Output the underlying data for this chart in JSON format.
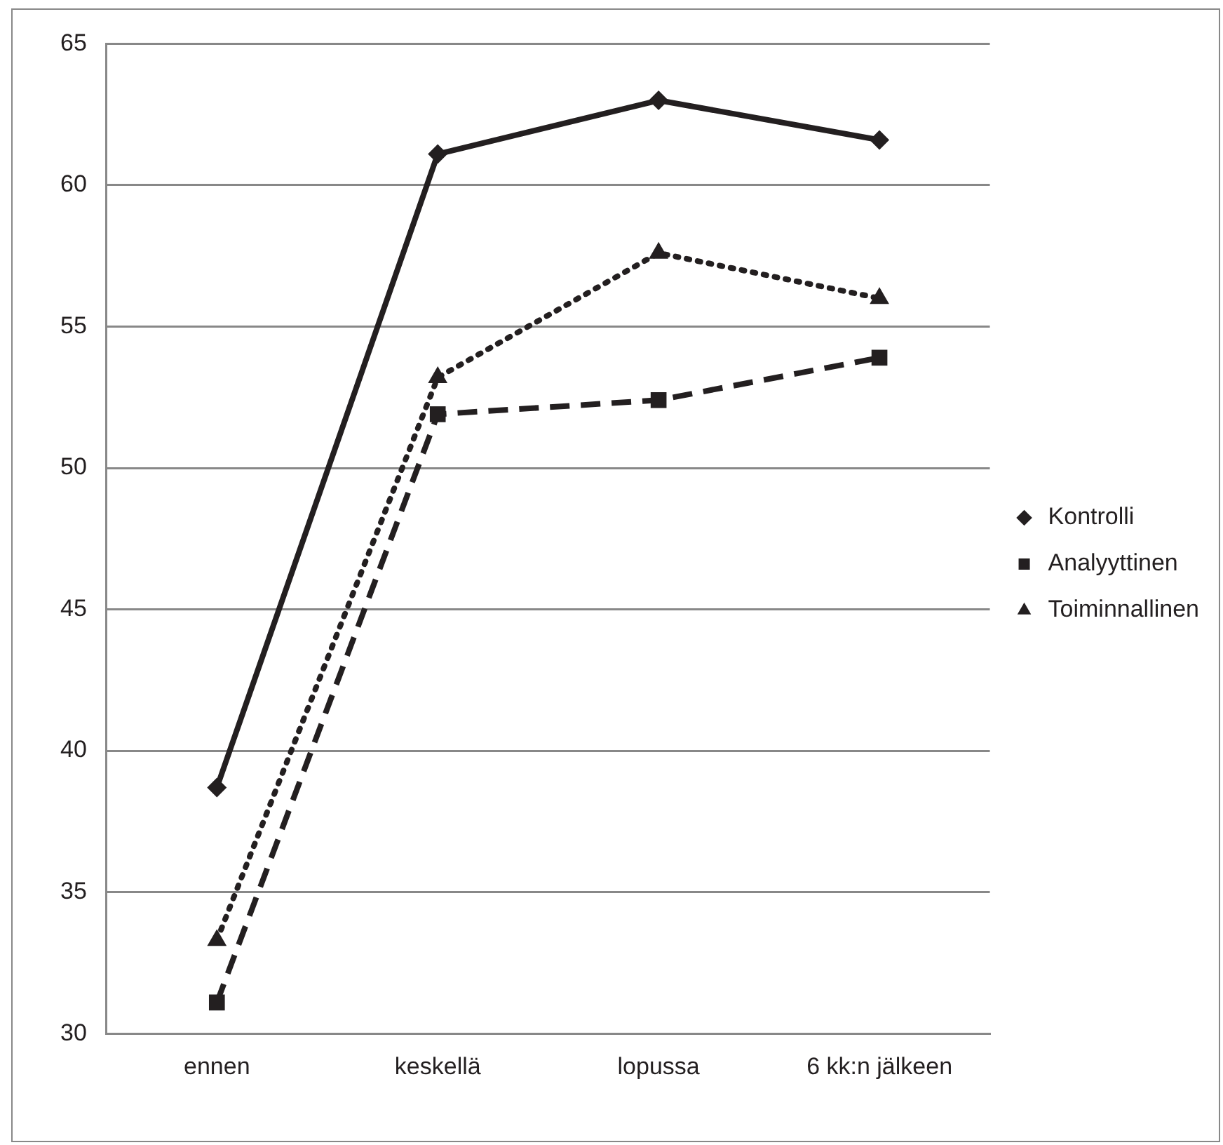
{
  "chart_data": {
    "type": "line",
    "categories": [
      "ennen",
      "keskellä",
      "lopussa",
      "6 kk:n jälkeen"
    ],
    "series": [
      {
        "name": "Kontrolli",
        "color": "#231f20",
        "marker": "diamond",
        "line_style": "solid",
        "values": [
          38.7,
          61.1,
          63.0,
          61.6
        ]
      },
      {
        "name": "Analyyttinen",
        "color": "#231f20",
        "marker": "square",
        "line_style": "dashed",
        "values": [
          31.1,
          51.9,
          52.4,
          53.9
        ]
      },
      {
        "name": "Toiminnallinen",
        "color": "#231f20",
        "marker": "triangle",
        "line_style": "dotted",
        "values": [
          33.3,
          53.2,
          57.6,
          56.0
        ]
      }
    ],
    "ylim": [
      30,
      65
    ],
    "yticks": [
      30,
      35,
      40,
      45,
      50,
      55,
      60,
      65
    ],
    "grid": "y",
    "legend": "right"
  }
}
